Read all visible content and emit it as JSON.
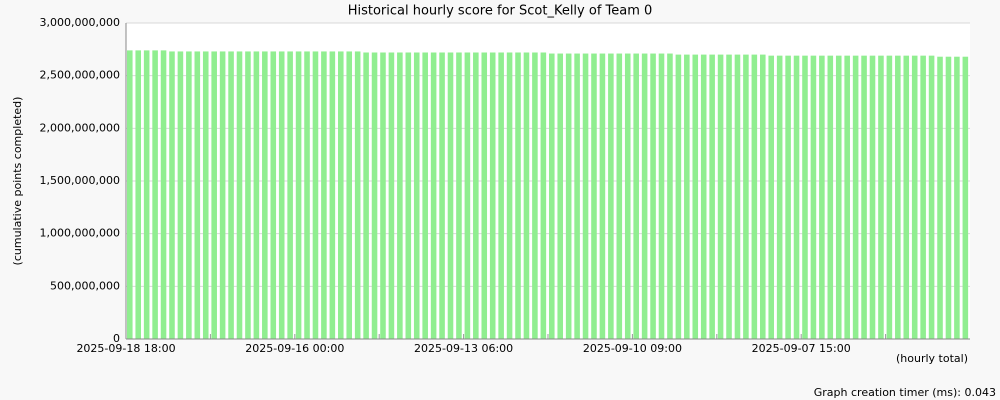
{
  "chart_data": {
    "type": "bar",
    "title": "Historical hourly score for Scot_Kelly of Team 0",
    "y_label": "(cumulative points completed)",
    "x_label": "(hourly total)",
    "footer": "Graph creation timer (ms): 0.043",
    "color": "#90ee90",
    "grid": true,
    "ylim": [
      0,
      3000000000
    ],
    "yticks": [
      0,
      {
        "value": 500000000,
        "label": "500,000,000"
      },
      {
        "value": 1000000000,
        "label": "1,000,000,000"
      },
      {
        "value": 1500000000,
        "label": "1,500,000,000"
      },
      {
        "value": 2000000000,
        "label": "2,000,000,000"
      },
      {
        "value": 2500000000,
        "label": "2,500,000,000"
      },
      {
        "value": 3000000000,
        "label": "3,000,000,000"
      }
    ],
    "categories": [
      "2025-09-18 18:00",
      null,
      null,
      null,
      null,
      null,
      null,
      null,
      null,
      null,
      null,
      null,
      null,
      null,
      null,
      null,
      null,
      null,
      null,
      null,
      "2025-09-16 00:00",
      null,
      null,
      null,
      null,
      null,
      null,
      null,
      null,
      null,
      null,
      null,
      null,
      null,
      null,
      null,
      null,
      null,
      null,
      null,
      "2025-09-13 06:00",
      null,
      null,
      null,
      null,
      null,
      null,
      null,
      null,
      null,
      null,
      null,
      null,
      null,
      null,
      null,
      null,
      null,
      null,
      null,
      "2025-09-10 09:00",
      null,
      null,
      null,
      null,
      null,
      null,
      null,
      null,
      null,
      null,
      null,
      null,
      null,
      null,
      null,
      null,
      null,
      null,
      null,
      "2025-09-07 15:00",
      null,
      null,
      null,
      null,
      null,
      null,
      null,
      null,
      null,
      null,
      null,
      null,
      null,
      null,
      null,
      null,
      null,
      null,
      null
    ],
    "values": [
      2740000000,
      2740000000,
      2740000000,
      2740000000,
      2740000000,
      2730000000,
      2730000000,
      2730000000,
      2730000000,
      2730000000,
      2730000000,
      2730000000,
      2730000000,
      2730000000,
      2730000000,
      2730000000,
      2730000000,
      2730000000,
      2730000000,
      2730000000,
      2730000000,
      2730000000,
      2730000000,
      2730000000,
      2730000000,
      2730000000,
      2730000000,
      2730000000,
      2720000000,
      2720000000,
      2720000000,
      2720000000,
      2720000000,
      2720000000,
      2720000000,
      2720000000,
      2720000000,
      2720000000,
      2720000000,
      2720000000,
      2720000000,
      2720000000,
      2720000000,
      2720000000,
      2720000000,
      2720000000,
      2720000000,
      2720000000,
      2720000000,
      2720000000,
      2710000000,
      2710000000,
      2710000000,
      2710000000,
      2710000000,
      2710000000,
      2710000000,
      2710000000,
      2710000000,
      2710000000,
      2710000000,
      2710000000,
      2710000000,
      2710000000,
      2710000000,
      2700000000,
      2700000000,
      2700000000,
      2700000000,
      2700000000,
      2700000000,
      2700000000,
      2700000000,
      2700000000,
      2700000000,
      2700000000,
      2690000000,
      2690000000,
      2690000000,
      2690000000,
      2690000000,
      2690000000,
      2690000000,
      2690000000,
      2690000000,
      2690000000,
      2690000000,
      2690000000,
      2690000000,
      2690000000,
      2690000000,
      2690000000,
      2690000000,
      2690000000,
      2690000000,
      2690000000,
      2680000000,
      2680000000,
      2680000000,
      2680000000
    ]
  }
}
